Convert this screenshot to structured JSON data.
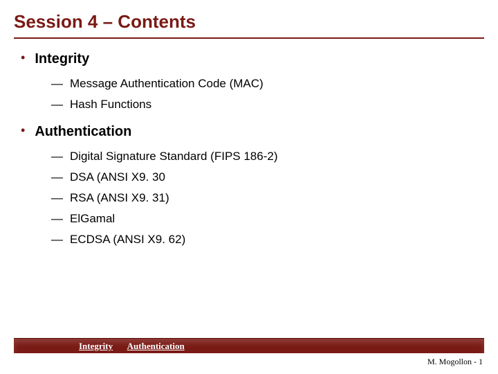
{
  "title": "Session 4 – Contents",
  "colors": {
    "accent": "#7a1a15",
    "text": "#000000",
    "background": "#ffffff",
    "footer_text": "#ffffff"
  },
  "typography": {
    "title_fontsize": 26,
    "section_fontsize": 20,
    "item_fontsize": 17,
    "footer_fontsize": 13,
    "page_number_fontsize": 12,
    "title_weight": "bold",
    "section_weight": "bold"
  },
  "sections": [
    {
      "title": "Integrity",
      "items": [
        "Message Authentication Code (MAC)",
        "Hash Functions"
      ]
    },
    {
      "title": "Authentication",
      "items": [
        "Digital Signature Standard (FIPS 186-2)",
        "DSA (ANSI X9. 30",
        "RSA (ANSI X9. 31)",
        "ElGamal",
        "ECDSA (ANSI X9. 62)"
      ]
    }
  ],
  "footer": {
    "links": [
      "Integrity",
      "Authentication"
    ],
    "page_label": "M. Mogollon  - 1"
  }
}
